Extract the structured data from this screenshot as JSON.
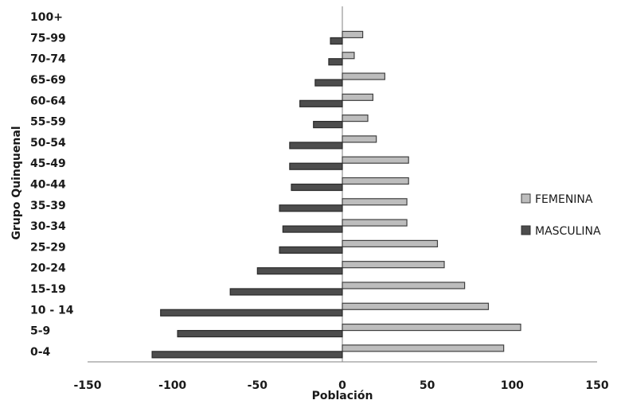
{
  "chart_data": {
    "type": "bar",
    "orientation": "horizontal",
    "title": "",
    "xlabel": "Población",
    "ylabel": "Grupo Quinquenal",
    "xlim": [
      -150,
      150
    ],
    "xticks": [
      -150,
      -100,
      -50,
      0,
      50,
      100,
      150
    ],
    "categories": [
      "0-4",
      "5-9",
      "10 - 14",
      "15-19",
      "20-24",
      "25-29",
      "30-34",
      "35-39",
      "40-44",
      "45-49",
      "50-54",
      "55-59",
      "60-64",
      "65-69",
      "70-74",
      "75-99",
      "100+"
    ],
    "series": [
      {
        "name": "FEMENINA",
        "color": "#bdbdbd",
        "values": [
          95,
          105,
          86,
          72,
          60,
          56,
          38,
          38,
          39,
          39,
          20,
          15,
          18,
          25,
          7,
          12,
          0
        ]
      },
      {
        "name": "MASCULINA",
        "color": "#4d4d4d",
        "values": [
          -112,
          -97,
          -107,
          -66,
          -50,
          -37,
          -35,
          -37,
          -30,
          -31,
          -31,
          -17,
          -25,
          -16,
          -8,
          -7,
          0
        ]
      }
    ],
    "grid": false,
    "legend_position": "right"
  }
}
